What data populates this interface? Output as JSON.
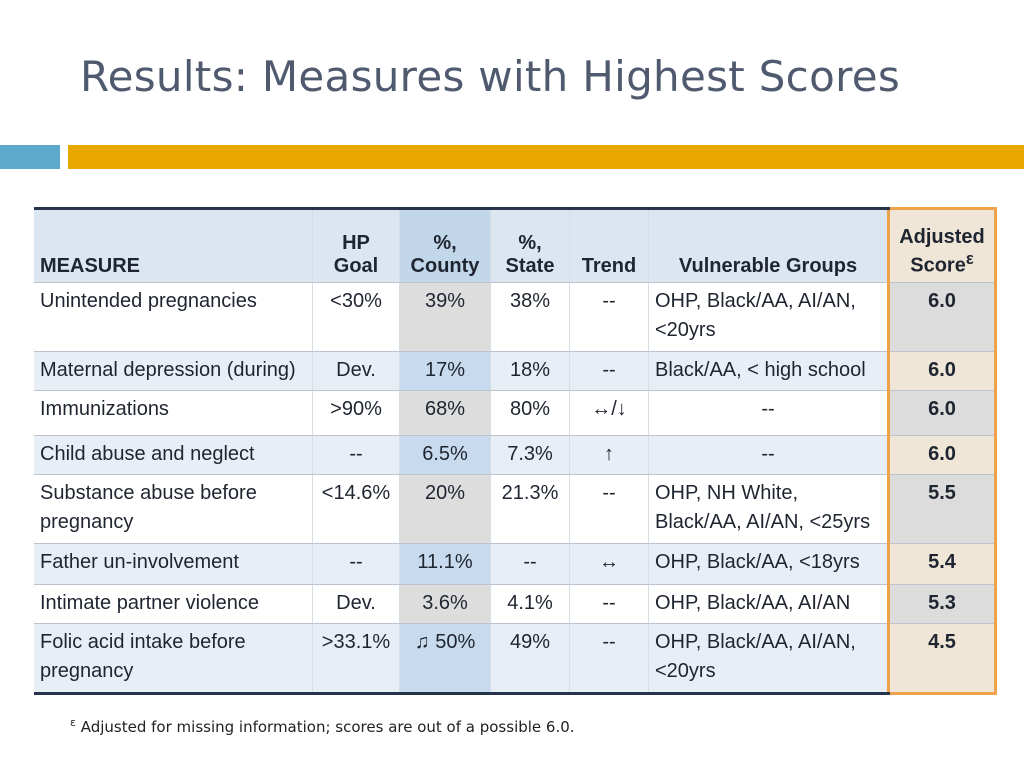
{
  "title": "Results: Measures with Highest Scores",
  "table": {
    "headers": {
      "measure": "MEASURE",
      "goal_1": "HP",
      "goal_2": "Goal",
      "county_1": "%,",
      "county_2": "County",
      "state_1": "%,",
      "state_2": "State",
      "trend": "Trend",
      "vulnerable": "Vulnerable Groups",
      "adjusted_1": "Adjusted",
      "adjusted_2": "Score",
      "adjusted_sup": "ε"
    },
    "rows": [
      {
        "measure": "Unintended pregnancies",
        "goal": "<30%",
        "county": "39%",
        "state": "38%",
        "trend": "--",
        "vulnerable": "OHP, Black/AA, AI/AN, <20yrs",
        "score": "6.0"
      },
      {
        "measure": "Maternal depression (during)",
        "goal": "Dev.",
        "county": "17%",
        "state": "18%",
        "trend": "--",
        "vulnerable": "Black/AA, < high school",
        "score": "6.0"
      },
      {
        "measure": "Immunizations",
        "goal": ">90%",
        "county": "68%",
        "state": "80%",
        "trend": "↔/↓",
        "vulnerable": "--",
        "score": "6.0"
      },
      {
        "measure": "Child abuse and neglect",
        "goal": "--",
        "county": "6.5%",
        "state": "7.3%",
        "trend": "↑",
        "vulnerable": "--",
        "score": "6.0"
      },
      {
        "measure": "Substance abuse before pregnancy",
        "goal": "<14.6%",
        "county": "20%",
        "state": "21.3%",
        "trend": "--",
        "vulnerable": "OHP, NH White, Black/AA, AI/AN, <25yrs",
        "score": "5.5"
      },
      {
        "measure": "Father un-involvement",
        "goal": "--",
        "county": "11.1%",
        "state": "--",
        "trend": "↔",
        "vulnerable": "OHP, Black/AA, <18yrs",
        "score": "5.4"
      },
      {
        "measure": "Intimate partner violence",
        "goal": "Dev.",
        "county": "3.6%",
        "state": "4.1%",
        "trend": "--",
        "vulnerable": "OHP, Black/AA, AI/AN",
        "score": "5.3"
      },
      {
        "measure": "Folic acid intake before pregnancy",
        "goal": ">33.1%",
        "county": "♫ 50%",
        "state": "49%",
        "trend": "--",
        "vulnerable": "OHP, Black/AA, AI/AN, <20yrs",
        "score": "4.5"
      }
    ]
  },
  "footnote": {
    "symbol": "ε",
    "text": "Adjusted for missing information; scores are out of a possible 6.0."
  },
  "colors": {
    "title": "#4f5a6e",
    "accent_blue": "#5ca9cc",
    "accent_gold": "#e8a800",
    "adjusted_border": "#f0a24a"
  }
}
